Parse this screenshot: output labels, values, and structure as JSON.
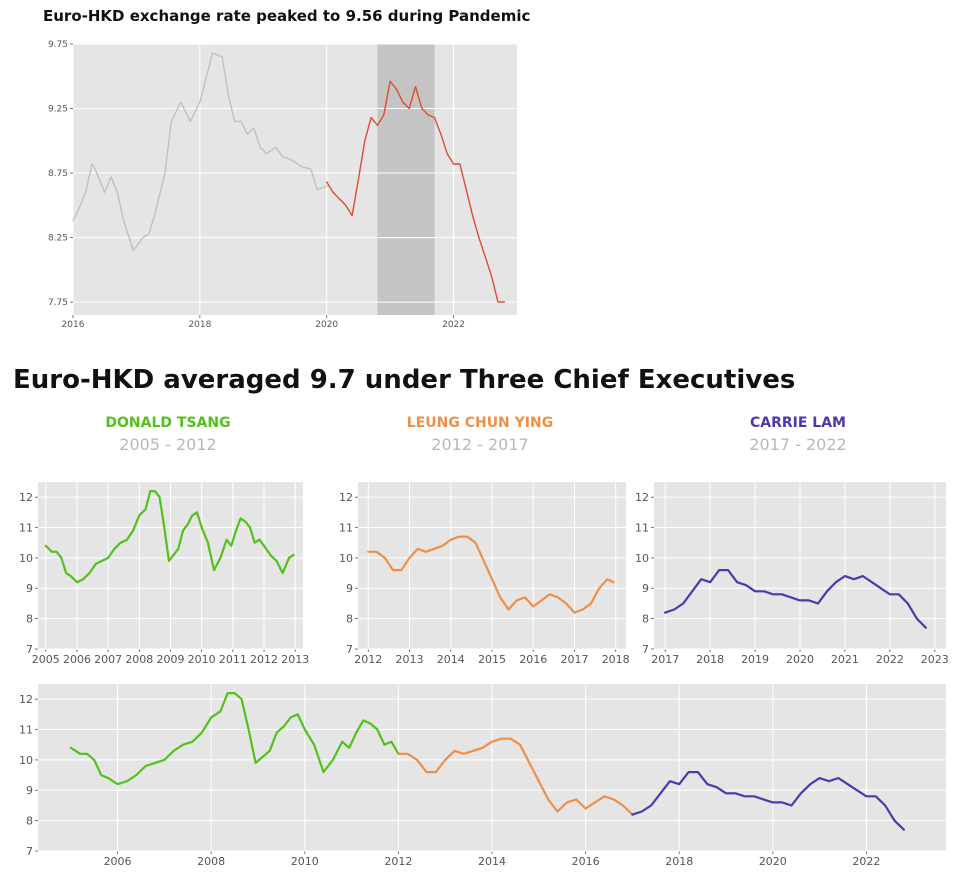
{
  "top_title": "Euro-HKD exchange rate peaked to 9.56 during Pandemic",
  "section_title": "Euro-HKD averaged 9.7 under Three Chief Executives",
  "executives": [
    {
      "name": "DONALD TSANG",
      "years": "2005 - 2012",
      "color": "#52c21b"
    },
    {
      "name": "LEUNG CHUN YING",
      "years": "2012 - 2017",
      "color": "#ef8f45"
    },
    {
      "name": "CARRIE LAM",
      "years": "2017 - 2022",
      "color": "#4b3aad"
    }
  ],
  "chart_data": [
    {
      "type": "line",
      "title": "Euro-HKD exchange rate peaked to 9.56 during Pandemic",
      "xlim": [
        2016.0,
        2023.0
      ],
      "ylim": [
        7.65,
        9.75
      ],
      "xticks": [
        2016,
        2018,
        2020,
        2022
      ],
      "yticks": [
        7.75,
        8.25,
        8.75,
        9.25,
        9.75
      ],
      "highlight_span": [
        2020.8,
        2021.7
      ],
      "series": [
        {
          "color": "#c0c0c0",
          "x": [
            2016.0,
            2016.1,
            2016.2,
            2016.3,
            2016.35,
            2016.5,
            2016.6,
            2016.7,
            2016.8,
            2016.95,
            2017.0,
            2017.1,
            2017.2,
            2017.3,
            2017.45,
            2017.55,
            2017.7,
            2017.85,
            2018.0,
            2018.2,
            2018.35,
            2018.45,
            2018.55,
            2018.65,
            2018.75,
            2018.85,
            2018.95,
            2019.05,
            2019.2,
            2019.3,
            2019.45,
            2019.6,
            2019.75,
            2019.85,
            2020.0
          ],
          "y": [
            8.38,
            8.48,
            8.6,
            8.82,
            8.78,
            8.6,
            8.72,
            8.6,
            8.38,
            8.15,
            8.18,
            8.25,
            8.28,
            8.45,
            8.75,
            9.15,
            9.3,
            9.15,
            9.3,
            9.68,
            9.65,
            9.35,
            9.15,
            9.15,
            9.05,
            9.1,
            8.95,
            8.9,
            8.95,
            8.88,
            8.85,
            8.8,
            8.78,
            8.62,
            8.65
          ]
        },
        {
          "color": "#e24a33",
          "x": [
            2020.0,
            2020.1,
            2020.2,
            2020.3,
            2020.4,
            2020.5,
            2020.6,
            2020.7,
            2020.8,
            2020.9,
            2021.0,
            2021.1,
            2021.2,
            2021.3,
            2021.4,
            2021.5,
            2021.6,
            2021.7,
            2021.8,
            2021.9,
            2022.0,
            2022.1,
            2022.2,
            2022.3,
            2022.4,
            2022.5,
            2022.6,
            2022.7,
            2022.8
          ],
          "y": [
            8.68,
            8.6,
            8.55,
            8.5,
            8.42,
            8.7,
            9.0,
            9.18,
            9.12,
            9.2,
            9.46,
            9.4,
            9.3,
            9.25,
            9.42,
            9.25,
            9.2,
            9.18,
            9.05,
            8.9,
            8.82,
            8.82,
            8.62,
            8.42,
            8.25,
            8.1,
            7.95,
            7.75,
            7.75
          ]
        }
      ]
    },
    {
      "type": "line",
      "xlim": [
        2004.75,
        2013.25
      ],
      "ylim": [
        7,
        12.5
      ],
      "xticks": [
        2005,
        2006,
        2007,
        2008,
        2009,
        2010,
        2011,
        2012,
        2013
      ],
      "yticks": [
        7,
        8,
        9,
        10,
        11,
        12
      ],
      "series": [
        {
          "name": "DONALD TSANG",
          "color": "#52c21b",
          "x": [
            2005.0,
            2005.2,
            2005.35,
            2005.5,
            2005.65,
            2005.8,
            2006.0,
            2006.2,
            2006.4,
            2006.6,
            2006.8,
            2007.0,
            2007.2,
            2007.4,
            2007.6,
            2007.8,
            2008.0,
            2008.2,
            2008.35,
            2008.5,
            2008.65,
            2008.8,
            2008.95,
            2009.1,
            2009.25,
            2009.4,
            2009.55,
            2009.7,
            2009.85,
            2010.0,
            2010.2,
            2010.4,
            2010.6,
            2010.8,
            2010.95,
            2011.1,
            2011.25,
            2011.4,
            2011.55,
            2011.7,
            2011.85,
            2012.0,
            2012.2,
            2012.4,
            2012.6,
            2012.8,
            2012.95
          ],
          "y": [
            10.4,
            10.2,
            10.2,
            10.0,
            9.5,
            9.4,
            9.2,
            9.3,
            9.5,
            9.8,
            9.9,
            10.0,
            10.3,
            10.5,
            10.6,
            10.9,
            11.4,
            11.6,
            12.2,
            12.2,
            12.0,
            11.0,
            9.9,
            10.1,
            10.3,
            10.9,
            11.1,
            11.4,
            11.5,
            11.0,
            10.5,
            9.6,
            10.0,
            10.6,
            10.4,
            10.9,
            11.3,
            11.2,
            11.0,
            10.5,
            10.6,
            10.4,
            10.1,
            9.9,
            9.5,
            10.0,
            10.1
          ]
        }
      ]
    },
    {
      "type": "line",
      "xlim": [
        2011.75,
        2018.25
      ],
      "ylim": [
        7,
        12.5
      ],
      "xticks": [
        2012,
        2013,
        2014,
        2015,
        2016,
        2017,
        2018
      ],
      "yticks": [
        7,
        8,
        9,
        10,
        11,
        12
      ],
      "series": [
        {
          "name": "LEUNG CHUN YING",
          "color": "#ef8f45",
          "x": [
            2012.0,
            2012.2,
            2012.4,
            2012.6,
            2012.8,
            2013.0,
            2013.2,
            2013.4,
            2013.6,
            2013.8,
            2014.0,
            2014.2,
            2014.4,
            2014.6,
            2014.8,
            2015.0,
            2015.2,
            2015.4,
            2015.6,
            2015.8,
            2016.0,
            2016.2,
            2016.4,
            2016.6,
            2016.8,
            2017.0,
            2017.2,
            2017.4,
            2017.6,
            2017.8,
            2017.95
          ],
          "y": [
            10.2,
            10.2,
            10.0,
            9.6,
            9.6,
            10.0,
            10.3,
            10.2,
            10.3,
            10.4,
            10.6,
            10.7,
            10.7,
            10.5,
            9.9,
            9.3,
            8.7,
            8.3,
            8.6,
            8.7,
            8.4,
            8.6,
            8.8,
            8.7,
            8.5,
            8.2,
            8.3,
            8.5,
            9.0,
            9.3,
            9.2
          ]
        }
      ]
    },
    {
      "type": "line",
      "xlim": [
        2016.75,
        2023.25
      ],
      "ylim": [
        7,
        12.5
      ],
      "xticks": [
        2017,
        2018,
        2019,
        2020,
        2021,
        2022,
        2023
      ],
      "yticks": [
        7,
        8,
        9,
        10,
        11,
        12
      ],
      "series": [
        {
          "name": "CARRIE LAM",
          "color": "#4b3aad",
          "x": [
            2017.0,
            2017.2,
            2017.4,
            2017.6,
            2017.8,
            2018.0,
            2018.2,
            2018.4,
            2018.6,
            2018.8,
            2019.0,
            2019.2,
            2019.4,
            2019.6,
            2019.8,
            2020.0,
            2020.2,
            2020.4,
            2020.6,
            2020.8,
            2021.0,
            2021.2,
            2021.4,
            2021.6,
            2021.8,
            2022.0,
            2022.2,
            2022.4,
            2022.6,
            2022.8
          ],
          "y": [
            8.2,
            8.3,
            8.5,
            8.9,
            9.3,
            9.2,
            9.6,
            9.6,
            9.2,
            9.1,
            8.9,
            8.9,
            8.8,
            8.8,
            8.7,
            8.6,
            8.6,
            8.5,
            8.9,
            9.2,
            9.4,
            9.3,
            9.4,
            9.2,
            9.0,
            8.8,
            8.8,
            8.5,
            8.0,
            7.7
          ]
        }
      ]
    },
    {
      "type": "line",
      "xlim": [
        2004.3,
        2023.7
      ],
      "ylim": [
        7,
        12.5
      ],
      "xticks": [
        2006,
        2008,
        2010,
        2012,
        2014,
        2016,
        2018,
        2020,
        2022
      ],
      "yticks": [
        7,
        8,
        9,
        10,
        11,
        12
      ],
      "series": [
        {
          "name": "DONALD TSANG",
          "color": "#52c21b",
          "x": [
            2005.0,
            2005.2,
            2005.35,
            2005.5,
            2005.65,
            2005.8,
            2006.0,
            2006.2,
            2006.4,
            2006.6,
            2006.8,
            2007.0,
            2007.2,
            2007.4,
            2007.6,
            2007.8,
            2008.0,
            2008.2,
            2008.35,
            2008.5,
            2008.65,
            2008.8,
            2008.95,
            2009.1,
            2009.25,
            2009.4,
            2009.55,
            2009.7,
            2009.85,
            2010.0,
            2010.2,
            2010.4,
            2010.6,
            2010.8,
            2010.95,
            2011.1,
            2011.25,
            2011.4,
            2011.55,
            2011.7,
            2011.85,
            2012.0
          ],
          "y": [
            10.4,
            10.2,
            10.2,
            10.0,
            9.5,
            9.4,
            9.2,
            9.3,
            9.5,
            9.8,
            9.9,
            10.0,
            10.3,
            10.5,
            10.6,
            10.9,
            11.4,
            11.6,
            12.2,
            12.2,
            12.0,
            11.0,
            9.9,
            10.1,
            10.3,
            10.9,
            11.1,
            11.4,
            11.5,
            11.0,
            10.5,
            9.6,
            10.0,
            10.6,
            10.4,
            10.9,
            11.3,
            11.2,
            11.0,
            10.5,
            10.6,
            10.2
          ]
        },
        {
          "name": "LEUNG CHUN YING",
          "color": "#ef8f45",
          "x": [
            2012.0,
            2012.2,
            2012.4,
            2012.6,
            2012.8,
            2013.0,
            2013.2,
            2013.4,
            2013.6,
            2013.8,
            2014.0,
            2014.2,
            2014.4,
            2014.6,
            2014.8,
            2015.0,
            2015.2,
            2015.4,
            2015.6,
            2015.8,
            2016.0,
            2016.2,
            2016.4,
            2016.6,
            2016.8,
            2017.0
          ],
          "y": [
            10.2,
            10.2,
            10.0,
            9.6,
            9.6,
            10.0,
            10.3,
            10.2,
            10.3,
            10.4,
            10.6,
            10.7,
            10.7,
            10.5,
            9.9,
            9.3,
            8.7,
            8.3,
            8.6,
            8.7,
            8.4,
            8.6,
            8.8,
            8.7,
            8.5,
            8.2
          ]
        },
        {
          "name": "CARRIE LAM",
          "color": "#4b3aad",
          "x": [
            2017.0,
            2017.2,
            2017.4,
            2017.6,
            2017.8,
            2018.0,
            2018.2,
            2018.4,
            2018.6,
            2018.8,
            2019.0,
            2019.2,
            2019.4,
            2019.6,
            2019.8,
            2020.0,
            2020.2,
            2020.4,
            2020.6,
            2020.8,
            2021.0,
            2021.2,
            2021.4,
            2021.6,
            2021.8,
            2022.0,
            2022.2,
            2022.4,
            2022.6,
            2022.8
          ],
          "y": [
            8.2,
            8.3,
            8.5,
            8.9,
            9.3,
            9.2,
            9.6,
            9.6,
            9.2,
            9.1,
            8.9,
            8.9,
            8.8,
            8.8,
            8.7,
            8.6,
            8.6,
            8.5,
            8.9,
            9.2,
            9.4,
            9.3,
            9.4,
            9.2,
            9.0,
            8.8,
            8.8,
            8.5,
            8.0,
            7.7
          ]
        }
      ]
    }
  ]
}
